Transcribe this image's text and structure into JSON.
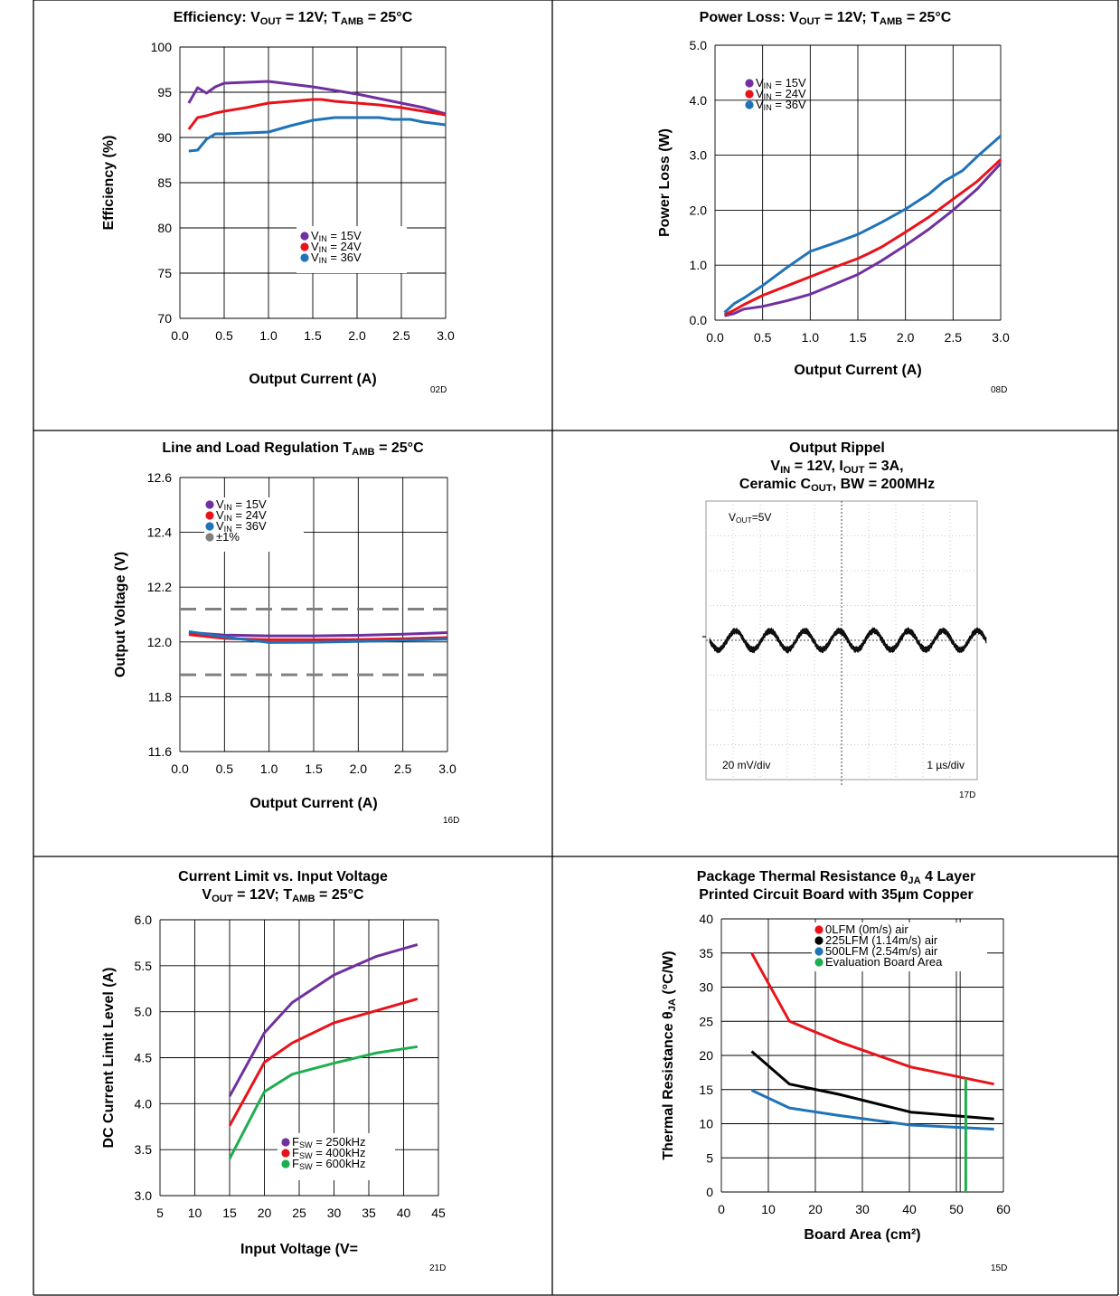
{
  "charts": [
    {
      "id": "efficiency",
      "type": "line",
      "title": {
        "main": "Efficiency: V",
        "sub1": "OUT",
        "mid": " = 12V; T",
        "sub2": "AMB",
        "end": " = 25°C"
      },
      "xlabel": "Output Current (A)",
      "ylabel": "Efficiency (%)",
      "code": "02D",
      "xlim": [
        0,
        3
      ],
      "ylim": [
        70,
        100
      ],
      "xticks": [
        "0.0",
        "0.5",
        "1.0",
        "1.5",
        "2.0",
        "2.5",
        "3.0"
      ],
      "yticks": [
        "70",
        "75",
        "80",
        "85",
        "90",
        "95",
        "100"
      ],
      "grid": "on",
      "legend": [
        {
          "pre": "V",
          "sub": "IN",
          "post": " = 15V",
          "color": "#7030a0"
        },
        {
          "pre": "V",
          "sub": "IN",
          "post": " = 24V",
          "color": "#e8131a"
        },
        {
          "pre": "V",
          "sub": "IN",
          "post": " = 36V",
          "color": "#1f73b8"
        }
      ],
      "series": [
        {
          "color": "#7030a0",
          "x": [
            0.1,
            0.2,
            0.3,
            0.4,
            0.5,
            0.75,
            1.0,
            1.25,
            1.5,
            1.75,
            2.0,
            2.25,
            2.5,
            2.75,
            3.0
          ],
          "y": [
            93.8,
            95.5,
            94.9,
            95.6,
            96.0,
            96.1,
            96.2,
            95.9,
            95.6,
            95.2,
            94.8,
            94.3,
            93.8,
            93.3,
            92.6
          ]
        },
        {
          "color": "#e8131a",
          "x": [
            0.1,
            0.2,
            0.3,
            0.4,
            0.5,
            0.75,
            1.0,
            1.25,
            1.5,
            1.6,
            1.75,
            2.0,
            2.25,
            2.5,
            2.75,
            3.0
          ],
          "y": [
            90.9,
            92.2,
            92.4,
            92.7,
            92.9,
            93.3,
            93.8,
            94.0,
            94.2,
            94.2,
            94.0,
            93.8,
            93.6,
            93.3,
            92.9,
            92.5
          ]
        },
        {
          "color": "#1f73b8",
          "x": [
            0.1,
            0.2,
            0.3,
            0.4,
            0.5,
            0.75,
            1.0,
            1.25,
            1.5,
            1.75,
            2.0,
            2.25,
            2.4,
            2.6,
            2.75,
            3.0
          ],
          "y": [
            88.5,
            88.6,
            89.8,
            90.4,
            90.4,
            90.5,
            90.6,
            91.3,
            91.9,
            92.2,
            92.2,
            92.2,
            92.0,
            92.0,
            91.7,
            91.4
          ]
        }
      ]
    },
    {
      "id": "power-loss",
      "type": "line",
      "title": {
        "main": "Power Loss: V",
        "sub1": "OUT",
        "mid": " = 12V; T",
        "sub2": "AMB",
        "end": " = 25°C"
      },
      "xlabel": "Output Current (A)",
      "ylabel": "Power Loss (W)",
      "code": "08D",
      "xlim": [
        0,
        3
      ],
      "ylim": [
        0,
        5
      ],
      "xticks": [
        "0.0",
        "0.5",
        "1.0",
        "1.5",
        "2.0",
        "2.5",
        "3.0"
      ],
      "yticks": [
        "0.0",
        "1.0",
        "2.0",
        "3.0",
        "4.0",
        "5.0"
      ],
      "grid": "on",
      "legend": [
        {
          "pre": "V",
          "sub": "IN",
          "post": " = 15V",
          "color": "#7030a0"
        },
        {
          "pre": "V",
          "sub": "IN",
          "post": " = 24V",
          "color": "#e8131a"
        },
        {
          "pre": "V",
          "sub": "IN",
          "post": " = 36V",
          "color": "#1f73b8"
        }
      ],
      "series": [
        {
          "color": "#7030a0",
          "x": [
            0.1,
            0.2,
            0.3,
            0.5,
            0.75,
            1.0,
            1.25,
            1.5,
            1.75,
            2.0,
            2.25,
            2.5,
            2.75,
            3.0
          ],
          "y": [
            0.08,
            0.12,
            0.2,
            0.25,
            0.35,
            0.47,
            0.65,
            0.83,
            1.08,
            1.36,
            1.66,
            2.0,
            2.38,
            2.85
          ]
        },
        {
          "color": "#e8131a",
          "x": [
            0.1,
            0.2,
            0.3,
            0.5,
            0.75,
            1.0,
            1.25,
            1.5,
            1.6,
            1.75,
            2.0,
            2.25,
            2.5,
            2.75,
            3.0
          ],
          "y": [
            0.1,
            0.18,
            0.28,
            0.45,
            0.62,
            0.79,
            0.96,
            1.12,
            1.2,
            1.33,
            1.6,
            1.88,
            2.2,
            2.52,
            2.92
          ]
        },
        {
          "color": "#1f73b8",
          "x": [
            0.1,
            0.2,
            0.3,
            0.5,
            0.75,
            1.0,
            1.25,
            1.5,
            1.75,
            2.0,
            2.25,
            2.4,
            2.6,
            2.75,
            3.0
          ],
          "y": [
            0.14,
            0.3,
            0.4,
            0.63,
            0.95,
            1.25,
            1.4,
            1.56,
            1.78,
            2.02,
            2.3,
            2.52,
            2.72,
            2.97,
            3.35
          ]
        }
      ]
    },
    {
      "id": "line-load-regulation",
      "type": "line",
      "title": {
        "main": "Line and Load Regulation T",
        "sub1": "AMB",
        "mid": " = 25°C",
        "sub2": "",
        "end": ""
      },
      "xlabel": "Output Current (A)",
      "ylabel": "Output Voltage  (V)",
      "code": "16D",
      "xlim": [
        0,
        3
      ],
      "ylim": [
        11.6,
        12.6
      ],
      "xticks": [
        "0.0",
        "0.5",
        "1.0",
        "1.5",
        "2.0",
        "2.5",
        "3.0"
      ],
      "yticks": [
        "11.6",
        "11.8",
        "12.0",
        "12.2",
        "12.4",
        "12.6"
      ],
      "grid": "on",
      "legend": [
        {
          "pre": "V",
          "sub": "IN",
          "post": " = 15V",
          "color": "#7030a0"
        },
        {
          "pre": "V",
          "sub": "IN",
          "post": " = 24V",
          "color": "#e8131a"
        },
        {
          "pre": "V",
          "sub": "IN",
          "post": " = 36V",
          "color": "#1f73b8"
        },
        {
          "pre": "±1%",
          "sub": "",
          "post": "",
          "color": "#808080"
        }
      ],
      "series": [
        {
          "color": "#7030a0",
          "x": [
            0.1,
            0.5,
            1.0,
            1.5,
            2.0,
            2.5,
            3.0
          ],
          "y": [
            12.035,
            12.025,
            12.022,
            12.022,
            12.024,
            12.028,
            12.034
          ]
        },
        {
          "color": "#e8131a",
          "x": [
            0.1,
            0.5,
            1.0,
            1.5,
            2.0,
            2.5,
            3.0
          ],
          "y": [
            12.027,
            12.013,
            12.008,
            12.008,
            12.009,
            12.012,
            12.016
          ]
        },
        {
          "color": "#1f73b8",
          "x": [
            0.1,
            0.5,
            1.0,
            1.5,
            2.0,
            2.5,
            3.0
          ],
          "y": [
            12.038,
            12.018,
            11.998,
            11.999,
            12.002,
            12.006,
            12.01
          ]
        }
      ],
      "limits": {
        "color": "#808080",
        "values": [
          12.12,
          11.88
        ]
      }
    },
    {
      "id": "output-ripple",
      "type": "scope",
      "title_lines": [
        {
          "main": "Output Rippel",
          "sub1": "",
          "mid": "",
          "sub2": "",
          "end": ""
        },
        {
          "main": "V",
          "sub1": "IN",
          "mid": " = 12V, I",
          "sub2": "OUT",
          "end": " = 3A,"
        },
        {
          "main": "Ceramic C",
          "sub1": "OUT",
          "mid": ", BW = 200MHz",
          "sub2": "",
          "end": ""
        }
      ],
      "channel_label": {
        "pre": "V",
        "sub": "OUT",
        "post": "=5V"
      },
      "vertical_scale": "20 mV/div",
      "horizontal_scale": "1 µs/div",
      "code": "17D",
      "waveform": {
        "cycles": 8,
        "amplitude_div": 0.27,
        "noise_div": 0.07,
        "offset_div": 0.0
      }
    },
    {
      "id": "current-limit",
      "type": "line",
      "title_lines": [
        {
          "main": "Current Limit vs. Input Voltage",
          "sub1": "",
          "mid": "",
          "sub2": "",
          "end": ""
        },
        {
          "main": "V",
          "sub1": "OUT",
          "mid": " = 12V; T",
          "sub2": "AMB",
          "end": " = 25°C"
        }
      ],
      "xlabel": "Input Voltage (V=",
      "ylabel": "DC Current Limit Level (A)",
      "code": "21D",
      "xlim": [
        5,
        45
      ],
      "ylim": [
        3,
        6
      ],
      "xticks": [
        "5",
        "10",
        "15",
        "20",
        "25",
        "30",
        "35",
        "40",
        "45"
      ],
      "yticks": [
        "3.0",
        "3.5",
        "4.0",
        "4.5",
        "5.0",
        "5.5",
        "6.0"
      ],
      "grid": "on",
      "legend": [
        {
          "pre": "F",
          "sub": "SW",
          "post": " = 250kHz",
          "color": "#7030a0"
        },
        {
          "pre": "F",
          "sub": "SW",
          "post": " = 400kHz",
          "color": "#e8131a"
        },
        {
          "pre": "F",
          "sub": "SW",
          "post": " = 600kHz",
          "color": "#1fae4f"
        }
      ],
      "series": [
        {
          "color": "#7030a0",
          "x": [
            15,
            20,
            24,
            30,
            36,
            42
          ],
          "y": [
            4.08,
            4.77,
            5.1,
            5.4,
            5.6,
            5.73
          ]
        },
        {
          "color": "#e8131a",
          "x": [
            15,
            20,
            24,
            30,
            36,
            42
          ],
          "y": [
            3.76,
            4.45,
            4.66,
            4.88,
            5.01,
            5.14
          ]
        },
        {
          "color": "#1fae4f",
          "x": [
            15,
            20,
            24,
            30,
            36,
            42
          ],
          "y": [
            3.4,
            4.13,
            4.32,
            4.44,
            4.55,
            4.62
          ]
        }
      ]
    },
    {
      "id": "thermal-resistance",
      "type": "line",
      "title_lines": [
        {
          "main": "Package Thermal Resistance θ",
          "sub1": "JA",
          "mid": "  4 Layer",
          "sub2": "",
          "end": ""
        },
        {
          "main": "Printed Circuit Board with 35µm Copper",
          "sub1": "",
          "mid": "",
          "sub2": "",
          "end": ""
        }
      ],
      "xlabel": "Board Area (cm²)",
      "ylabel": {
        "pre": "Thermal Resistance θ",
        "sub": "JA",
        "post": " (°C/W)"
      },
      "code": "15D",
      "xlim": [
        0,
        60
      ],
      "ylim": [
        0,
        40
      ],
      "xticks": [
        "0",
        "10",
        "20",
        "30",
        "40",
        "50",
        "60"
      ],
      "yticks": [
        "0",
        "5",
        "10",
        "15",
        "20",
        "25",
        "30",
        "35",
        "40"
      ],
      "grid": "on",
      "legend": [
        {
          "pre": "0LFM (0m/s) air",
          "sub": "",
          "post": "",
          "color": "#e8131a"
        },
        {
          "pre": "225LFM (1.14m/s) air",
          "sub": "",
          "post": "",
          "color": "#000000"
        },
        {
          "pre": "500LFM (2.54m/s) air",
          "sub": "",
          "post": "",
          "color": "#1f73b8"
        },
        {
          "pre": "Evaluation Board Area",
          "sub": "",
          "post": "",
          "color": "#1fae4f"
        }
      ],
      "series": [
        {
          "color": "#e8131a",
          "x": [
            6.45,
            14.5,
            25,
            40.3,
            58
          ],
          "y": [
            35,
            25.0,
            22.0,
            18.3,
            15.8
          ]
        },
        {
          "color": "#000000",
          "x": [
            6.45,
            14.5,
            25,
            40.3,
            58
          ],
          "y": [
            20.6,
            15.8,
            14.3,
            11.7,
            10.7
          ]
        },
        {
          "color": "#1f73b8",
          "x": [
            6.45,
            14.5,
            25,
            40.3,
            58
          ],
          "y": [
            14.9,
            12.3,
            11.2,
            9.8,
            9.2
          ]
        }
      ],
      "evaluation_board_area": {
        "x": 52,
        "y_top": 16.6,
        "color": "#1fae4f"
      }
    }
  ]
}
